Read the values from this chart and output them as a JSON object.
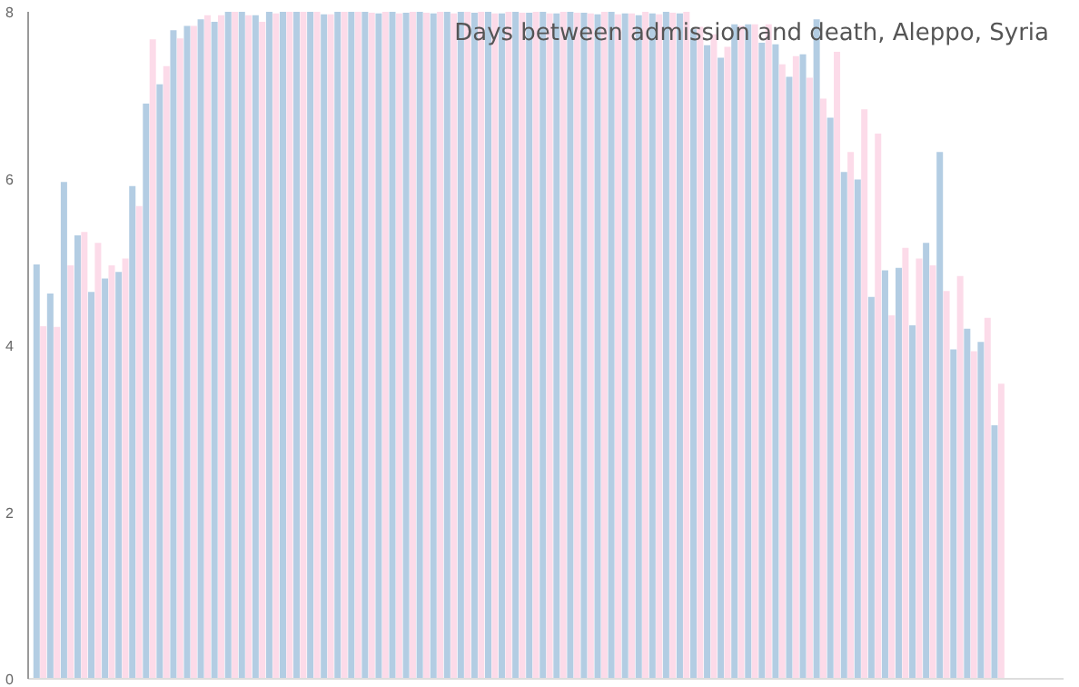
{
  "chart_data": {
    "type": "bar",
    "title": "Days between admission and death, Aleppo, Syria",
    "categories": [
      null,
      null,
      null,
      null,
      null,
      null,
      null,
      null,
      null,
      null,
      null,
      null,
      null,
      null,
      null,
      null,
      null,
      null,
      null,
      null,
      null,
      null,
      null,
      null,
      null,
      null,
      null,
      null,
      null,
      null,
      null,
      null,
      null,
      null,
      null,
      null,
      null,
      null,
      null,
      null,
      null,
      null,
      null,
      null,
      null,
      null,
      null,
      null,
      null,
      null,
      null,
      null,
      null,
      null,
      null,
      null,
      null,
      null,
      null,
      null,
      null,
      null,
      null,
      null,
      null,
      null,
      null,
      null,
      null,
      null,
      null
    ],
    "series": [
      {
        "color": "#b3cde3",
        "values": [
          4.97,
          4.62,
          5.96,
          5.32,
          4.64,
          4.8,
          4.88,
          5.91,
          6.9,
          7.13,
          7.78,
          7.83,
          7.91,
          7.88,
          8.0,
          8.0,
          7.96,
          8.0,
          8.0,
          8.0,
          8.0,
          7.97,
          8.0,
          8.0,
          8.0,
          7.98,
          8.0,
          7.99,
          8.0,
          7.98,
          8.0,
          8.0,
          7.99,
          8.0,
          7.98,
          8.0,
          7.99,
          8.0,
          7.98,
          8.0,
          7.99,
          7.97,
          8.0,
          7.98,
          7.96,
          7.98,
          8.0,
          7.98,
          7.79,
          7.6,
          7.45,
          7.85,
          7.85,
          7.63,
          7.61,
          7.22,
          7.49,
          7.91,
          6.73,
          6.08,
          5.99,
          4.58,
          4.9,
          4.93,
          4.24,
          5.23,
          6.32,
          3.95,
          4.2,
          4.04,
          3.04
        ]
      },
      {
        "color": "#fcdbe9",
        "values": [
          4.23,
          4.22,
          4.96,
          5.36,
          5.23,
          4.96,
          5.04,
          5.67,
          7.67,
          7.35,
          7.68,
          7.83,
          7.96,
          7.96,
          8.0,
          7.96,
          7.88,
          7.98,
          8.0,
          8.0,
          8.0,
          7.97,
          8.0,
          8.0,
          7.99,
          8.0,
          7.98,
          8.0,
          7.99,
          8.0,
          7.98,
          8.0,
          8.0,
          7.98,
          8.0,
          7.99,
          8.0,
          7.98,
          8.0,
          7.99,
          7.98,
          8.0,
          7.97,
          7.98,
          8.0,
          7.97,
          7.99,
          8.0,
          7.82,
          7.73,
          7.58,
          7.83,
          7.85,
          7.85,
          7.37,
          7.47,
          7.21,
          6.96,
          7.52,
          6.32,
          6.83,
          6.54,
          4.36,
          5.17,
          5.04,
          4.96,
          4.65,
          4.83,
          3.93,
          4.33,
          3.54
        ]
      }
    ],
    "ylim": [
      0,
      8
    ],
    "yticks": [
      0,
      2,
      4,
      6,
      8
    ],
    "tick_labels": "y",
    "grid": false
  }
}
